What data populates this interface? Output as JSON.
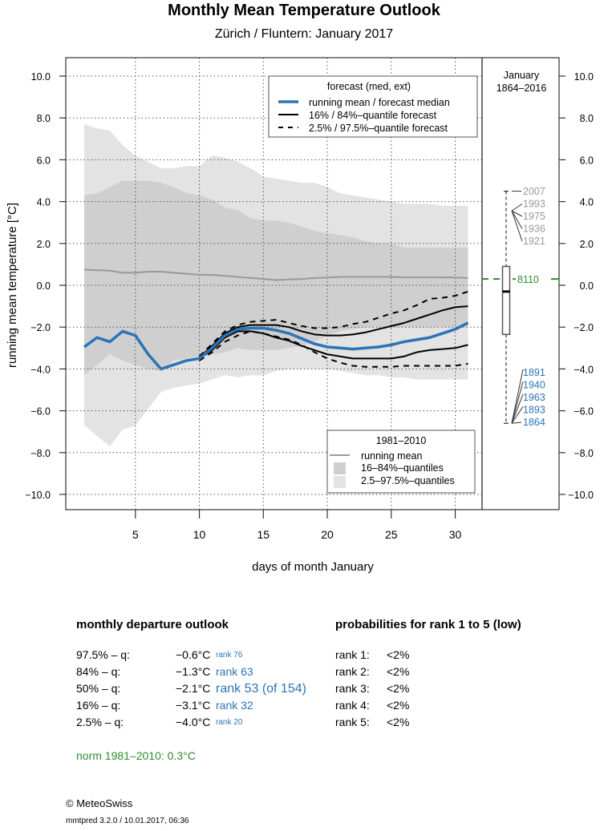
{
  "header": {
    "title": "Monthly Mean Temperature Outlook",
    "subtitle": "Zürich / Fluntern: January 2017"
  },
  "colors": {
    "forecast_median": "#2b74b6",
    "quantile_line": "#000000",
    "climate_mean": "#999999",
    "band_16_84": "#cfcfcf",
    "band_2_5_97_5": "#e3e3e3",
    "norm_green": "#2e8b2e",
    "warm_years": "#999999",
    "cold_years": "#2b74b6"
  },
  "chart_data": {
    "type": "line",
    "title": "Monthly Mean Temperature Outlook",
    "subtitle": "Zürich / Fluntern: January 2017",
    "xlabel": "days of month January",
    "ylabel": "running mean temperature [°C]",
    "xlim": [
      0,
      32
    ],
    "ylim": [
      -10.8,
      10.8
    ],
    "x_ticks": [
      5,
      10,
      15,
      20,
      25,
      30
    ],
    "y_ticks": [
      10,
      8,
      6,
      4,
      2,
      0,
      -2,
      -4,
      -6,
      -8,
      -10
    ],
    "y_tick_labels": [
      "10.0",
      "8.0",
      "6.0",
      "4.0",
      "2.0",
      "0.0",
      "−2.0",
      "−4.0",
      "−6.0",
      "−8.0",
      "−10.0"
    ],
    "grid": true,
    "x": [
      1,
      2,
      3,
      4,
      5,
      6,
      7,
      8,
      9,
      10,
      11,
      12,
      13,
      14,
      15,
      16,
      17,
      18,
      19,
      20,
      21,
      22,
      23,
      24,
      25,
      26,
      27,
      28,
      29,
      30,
      31
    ],
    "series": [
      {
        "name": "climate 2.5% quantile (1981–2010)",
        "role": "band_low_outer",
        "values": [
          -6.7,
          -7.2,
          -7.7,
          -6.9,
          -6.7,
          -5.9,
          -5.1,
          -4.9,
          -4.8,
          -4.7,
          -4.5,
          -4.3,
          -4.4,
          -4.3,
          -4.3,
          -4.1,
          -4.0,
          -4.0,
          -4.0,
          -4.0,
          -4.1,
          -4.2,
          -4.3,
          -4.3,
          -4.4,
          -4.4,
          -4.5,
          -4.5,
          -4.5,
          -4.5,
          -4.5
        ]
      },
      {
        "name": "climate 16% quantile (1981–2010)",
        "role": "band_low_inner",
        "values": [
          -4.3,
          -3.8,
          -3.3,
          -3.6,
          -3.8,
          -4.0,
          -4.1,
          -3.6,
          -3.5,
          -3.4,
          -3.3,
          -3.2,
          -3.0,
          -3.1,
          -3.1,
          -3.1,
          -3.0,
          -2.9,
          -2.7,
          -2.4,
          -2.2,
          -2.1,
          -2.0,
          -2.0,
          -2.0,
          -2.0,
          -2.0,
          -2.0,
          -2.0,
          -2.0,
          -2.0
        ]
      },
      {
        "name": "climate 84% quantile (1981–2010)",
        "role": "band_high_inner",
        "values": [
          4.3,
          4.4,
          4.7,
          5.0,
          5.0,
          5.0,
          4.9,
          4.7,
          4.4,
          4.3,
          4.1,
          3.7,
          3.6,
          3.2,
          3.1,
          3.1,
          3.0,
          2.8,
          2.6,
          2.5,
          2.4,
          2.3,
          2.1,
          2.0,
          2.0,
          1.8,
          1.8,
          1.8,
          1.8,
          1.8,
          1.8
        ]
      },
      {
        "name": "climate 97.5% quantile (1981–2010)",
        "role": "band_high_outer",
        "values": [
          7.7,
          7.5,
          7.4,
          6.7,
          6.2,
          5.9,
          5.6,
          5.6,
          5.7,
          5.7,
          6.2,
          6.1,
          5.9,
          5.6,
          5.2,
          5.1,
          5.0,
          4.9,
          4.9,
          4.7,
          4.4,
          4.3,
          4.2,
          4.1,
          4.0,
          3.9,
          3.9,
          3.9,
          3.8,
          3.8,
          3.8
        ]
      },
      {
        "name": "running mean (1981–2010)",
        "role": "climate_mean",
        "values": [
          0.75,
          0.72,
          0.7,
          0.6,
          0.6,
          0.65,
          0.65,
          0.6,
          0.55,
          0.5,
          0.5,
          0.45,
          0.4,
          0.35,
          0.3,
          0.25,
          0.28,
          0.3,
          0.35,
          0.37,
          0.4,
          0.4,
          0.4,
          0.4,
          0.4,
          0.38,
          0.38,
          0.38,
          0.38,
          0.37,
          0.35
        ]
      },
      {
        "name": "running mean / forecast median",
        "role": "median",
        "values": [
          -2.95,
          -2.5,
          -2.7,
          -2.2,
          -2.4,
          -3.3,
          -4.0,
          -3.8,
          -3.6,
          -3.5,
          -3.0,
          -2.4,
          -2.1,
          -2.05,
          -2.05,
          -2.15,
          -2.3,
          -2.55,
          -2.8,
          -2.95,
          -3.0,
          -3.05,
          -3.0,
          -2.95,
          -2.85,
          -2.7,
          -2.6,
          -2.5,
          -2.3,
          -2.1,
          -1.8
        ]
      },
      {
        "name": "16% quantile forecast",
        "role": "q16",
        "values": [
          null,
          null,
          null,
          null,
          null,
          null,
          null,
          null,
          null,
          -3.5,
          -3.1,
          -2.5,
          -2.2,
          -2.2,
          -2.3,
          -2.5,
          -2.65,
          -2.9,
          -3.1,
          -3.3,
          -3.4,
          -3.5,
          -3.5,
          -3.5,
          -3.5,
          -3.4,
          -3.2,
          -3.1,
          -3.05,
          -3.0,
          -2.85
        ]
      },
      {
        "name": "84% quantile forecast",
        "role": "q84",
        "values": [
          null,
          null,
          null,
          null,
          null,
          null,
          null,
          null,
          null,
          -3.45,
          -2.9,
          -2.3,
          -2.0,
          -1.9,
          -1.9,
          -1.9,
          -2.0,
          -2.2,
          -2.35,
          -2.4,
          -2.4,
          -2.35,
          -2.25,
          -2.1,
          -1.95,
          -1.8,
          -1.6,
          -1.4,
          -1.2,
          -1.05,
          -1.0
        ]
      },
      {
        "name": "2.5% quantile forecast",
        "role": "q2_5",
        "values": [
          null,
          null,
          null,
          null,
          null,
          null,
          null,
          null,
          null,
          -3.6,
          -3.2,
          -2.7,
          -2.4,
          -2.2,
          -2.3,
          -2.45,
          -2.6,
          -2.85,
          -3.2,
          -3.5,
          -3.7,
          -3.85,
          -3.9,
          -3.9,
          -3.9,
          -3.85,
          -3.85,
          -3.85,
          -3.85,
          -3.85,
          -3.75
        ]
      },
      {
        "name": "97.5% quantile forecast",
        "role": "q97_5",
        "values": [
          null,
          null,
          null,
          null,
          null,
          null,
          null,
          null,
          null,
          -3.4,
          -2.8,
          -2.2,
          -1.9,
          -1.75,
          -1.7,
          -1.65,
          -1.8,
          -1.95,
          -2.05,
          -2.05,
          -2.0,
          -1.85,
          -1.75,
          -1.55,
          -1.35,
          -1.2,
          -0.95,
          -0.65,
          -0.6,
          -0.5,
          -0.3
        ]
      }
    ],
    "legend_forecast": {
      "title": "forecast (med, ext)",
      "position": "top-right",
      "entries": [
        "running mean / forecast median",
        "16% / 84%–quantile forecast",
        "2.5% / 97.5%–quantile forecast"
      ]
    },
    "legend_climate": {
      "title": "1981–2010",
      "position": "bottom-right",
      "entries": [
        "running mean",
        "16–84%–quantiles",
        "2.5–97.5%–quantiles"
      ]
    },
    "side_panel": {
      "title_line1": "January",
      "title_line2": "1864–2016",
      "boxplot": {
        "min": -6.6,
        "q1": -2.35,
        "median": -0.3,
        "q3": 0.9,
        "max": 4.5
      },
      "norm_label": "8110",
      "norm_value": 0.3,
      "warm_years": [
        "2007",
        "1993",
        "1975",
        "1936",
        "1921"
      ],
      "cold_years": [
        "1891",
        "1940",
        "1963",
        "1893",
        "1864"
      ]
    }
  },
  "departure": {
    "title": "monthly departure outlook",
    "rows": [
      {
        "label": "97.5% – q:",
        "value": "−0.6°C",
        "rank": "rank 76",
        "size": "small"
      },
      {
        "label": "84% – q:",
        "value": "−1.3°C",
        "rank": "rank 63",
        "size": "mid"
      },
      {
        "label": "50% – q:",
        "value": "−2.1°C",
        "rank": "rank 53 (of 154)",
        "size": "big"
      },
      {
        "label": "16% – q:",
        "value": "−3.1°C",
        "rank": "rank 32",
        "size": "mid"
      },
      {
        "label": "2.5% – q:",
        "value": "−4.0°C",
        "rank": "rank 20",
        "size": "small"
      }
    ],
    "norm": "norm 1981–2010: 0.3°C"
  },
  "probabilities": {
    "title": "probabilities for rank 1 to 5 (low)",
    "rows": [
      {
        "label": "rank 1:",
        "value": "<2%"
      },
      {
        "label": "rank 2:",
        "value": "<2%"
      },
      {
        "label": "rank 3:",
        "value": "<2%"
      },
      {
        "label": "rank 4:",
        "value": "<2%"
      },
      {
        "label": "rank 5:",
        "value": "<2%"
      }
    ]
  },
  "footer": {
    "copyright": "© MeteoSwiss",
    "version": "mmtpred 3.2.0 / 10.01.2017, 06:36"
  }
}
